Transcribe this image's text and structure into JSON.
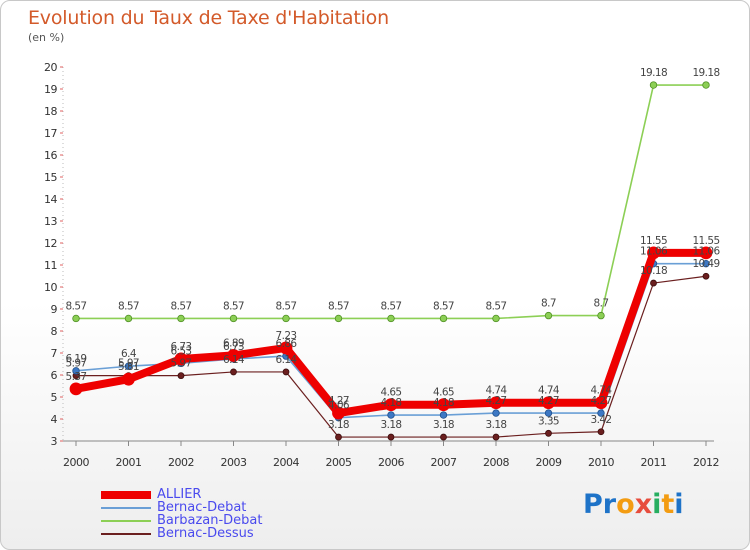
{
  "title": "Evolution du Taux de Taxe d'Habitation",
  "unit": "(en %)",
  "logo": {
    "text": "Proxiti",
    "letters": [
      "P",
      "r",
      "o",
      "x",
      "i",
      "t",
      "i"
    ],
    "colors": [
      "#1e73c8",
      "#1e73c8",
      "#f39c12",
      "#e74c3c",
      "#27ae60",
      "#f39c12",
      "#1e73c8"
    ]
  },
  "chart_data": {
    "type": "line",
    "title": "Evolution du Taux de Taxe d'Habitation",
    "ylabel": "(en %)",
    "xlabel": "",
    "ylim": [
      3,
      20
    ],
    "y_ticks": [
      "3",
      "4",
      "5",
      "6",
      "7",
      "8",
      "9",
      "10",
      "11",
      "12",
      "13",
      "14",
      "15",
      "16",
      "17",
      "18",
      "19",
      "20"
    ],
    "x": [
      "2000",
      "2001",
      "2002",
      "2003",
      "2004",
      "2005",
      "2006",
      "2007",
      "2008",
      "2009",
      "2010",
      "2011",
      "2012"
    ],
    "grid": false,
    "legend_position": "bottom-left",
    "series": [
      {
        "name": "ALLIER",
        "color": "#ee0000",
        "values": [
          5.37,
          5.81,
          6.73,
          6.89,
          7.23,
          4.27,
          4.65,
          4.65,
          4.74,
          4.74,
          4.74,
          11.55,
          11.55
        ],
        "labels": [
          "5.37",
          "5.81",
          "6.73",
          "6.89",
          "7.23",
          "4.27",
          "4.65",
          "4.65",
          "4.74",
          "4.74",
          "4.74",
          "11.55",
          "11.55"
        ]
      },
      {
        "name": "Bernac-Debat",
        "color": "#6a9fd6",
        "values": [
          6.19,
          6.4,
          6.53,
          6.73,
          6.86,
          4.06,
          4.18,
          4.18,
          4.27,
          4.27,
          4.27,
          11.06,
          11.06
        ],
        "labels": [
          "6.19",
          "6.4",
          "6.53",
          "6.73",
          "6.86",
          "4.06",
          "4.18",
          "4.18",
          "4.27",
          "4.27",
          "4.27",
          "11.06",
          "11.06"
        ]
      },
      {
        "name": "Barbazan-Debat",
        "color": "#8ccf55",
        "values": [
          8.57,
          8.57,
          8.57,
          8.57,
          8.57,
          8.57,
          8.57,
          8.57,
          8.57,
          8.7,
          8.7,
          19.18,
          19.18
        ],
        "labels": [
          "8.57",
          "8.57",
          "8.57",
          "8.57",
          "8.57",
          "8.57",
          "8.57",
          "8.57",
          "8.57",
          "8.7",
          "8.7",
          "19.18",
          "19.18"
        ]
      },
      {
        "name": "Bernac-Dessus",
        "color": "#6b1f1f",
        "values": [
          5.97,
          5.97,
          5.97,
          6.14,
          6.14,
          3.18,
          3.18,
          3.18,
          3.18,
          3.35,
          3.42,
          10.18,
          10.49
        ],
        "labels": [
          "5.97",
          "5.97",
          "5.97",
          "6.14",
          "6.14",
          "3.18",
          "3.18",
          "3.18",
          "3.18",
          "3.35",
          "3.42",
          "10.18",
          "10.49"
        ]
      }
    ]
  }
}
